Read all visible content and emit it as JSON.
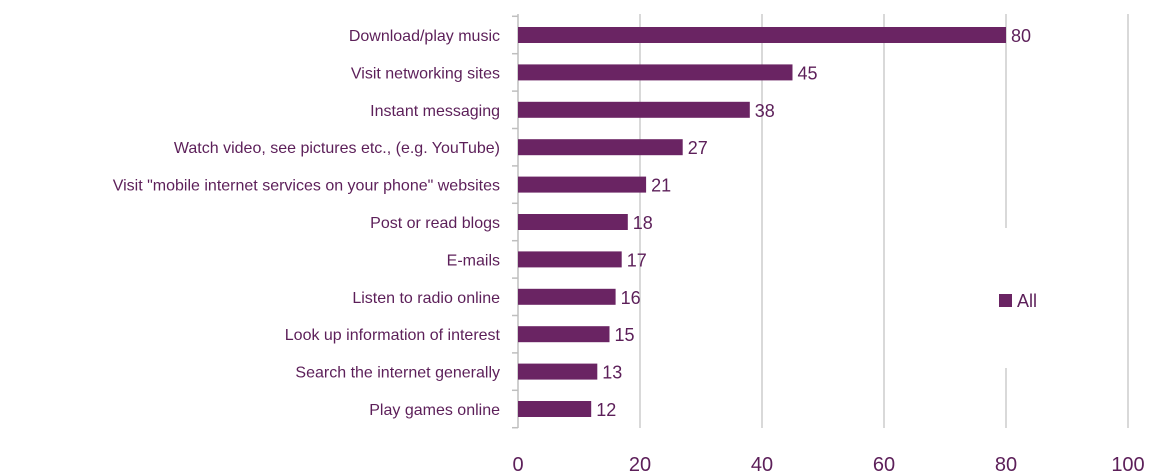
{
  "chart_data": {
    "type": "bar",
    "orientation": "horizontal",
    "categories": [
      "Download/play music",
      "Visit networking sites",
      "Instant messaging",
      "Watch video, see pictures etc., (e.g. YouTube)",
      "Visit \"mobile internet services on your phone\" websites",
      "Post or read blogs",
      "E-mails",
      "Listen to radio online",
      "Look up information of interest",
      "Search the internet generally",
      "Play games online"
    ],
    "series": [
      {
        "name": "All",
        "values": [
          80,
          45,
          38,
          27,
          21,
          18,
          17,
          16,
          15,
          13,
          12
        ]
      }
    ],
    "title": "",
    "xlabel": "",
    "ylabel": "",
    "xlim": [
      0,
      100
    ],
    "x_ticks": [
      0,
      20,
      40,
      60,
      80,
      100
    ],
    "grid": "vertical",
    "legend": "right",
    "data_labels": true
  },
  "colors": {
    "bar": "#6a2463",
    "category_text": "#5c1f59",
    "value_text": "#5c1f59",
    "tick_text": "#5c1f59",
    "gridline": "#d9d9d9",
    "axis": "#bfbfbf"
  }
}
